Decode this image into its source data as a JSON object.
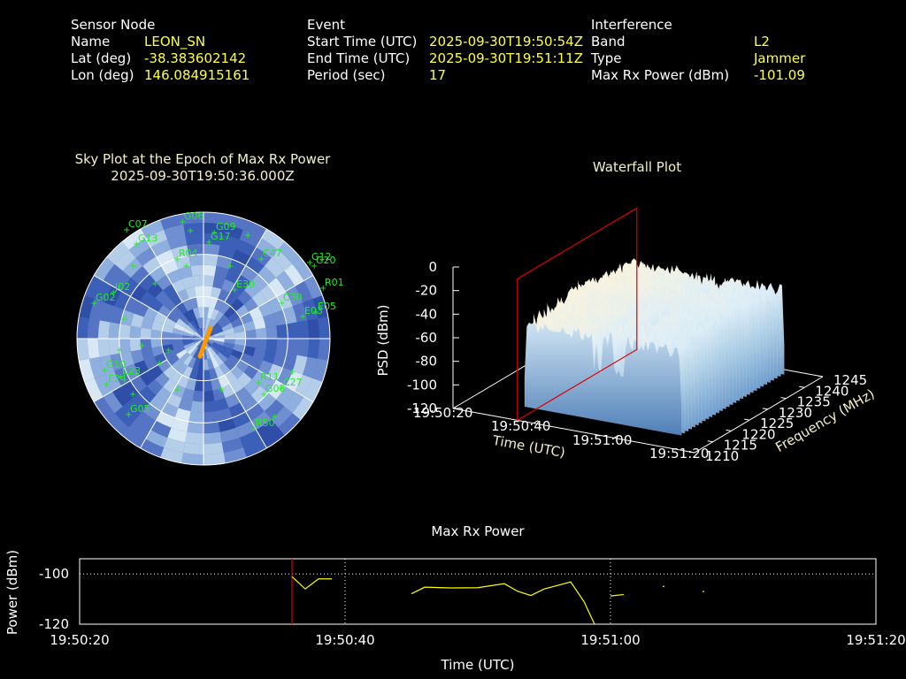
{
  "header": {
    "sensor": {
      "title": "Sensor Node",
      "name_label": "Name",
      "name": "LEON_SN",
      "lat_label": "Lat (deg)",
      "lat": "-38.383602142",
      "lon_label": "Lon (deg)",
      "lon": "146.084915161"
    },
    "event": {
      "title": "Event",
      "start_label": "Start Time (UTC)",
      "start": "2025-09-30T19:50:54Z",
      "end_label": "End Time (UTC)",
      "end": "2025-09-30T19:51:11Z",
      "period_label": "Period (sec)",
      "period": "17"
    },
    "interference": {
      "title": "Interference",
      "band_label": "Band",
      "band": "L2",
      "type_label": "Type",
      "type": "Jammer",
      "power_label": "Max Rx Power (dBm)",
      "power": "-101.09"
    }
  },
  "colors": {
    "background": "#000000",
    "label": "#ffffff",
    "value": "#ffff40",
    "satellite": "#22ee22",
    "track": "#ff9900",
    "marker": "#dd0000",
    "power_line": "#ffff00"
  },
  "chart_data": [
    {
      "type": "polar-sky",
      "title": "Sky Plot at the Epoch of Max Rx Power",
      "subtitle": "2025-09-30T19:50:36.000Z",
      "satellites": [
        {
          "id": "E05"
        },
        {
          "id": "G09"
        },
        {
          "id": "G10"
        },
        {
          "id": "G12"
        },
        {
          "id": "G17"
        },
        {
          "id": "G20"
        },
        {
          "id": "R01"
        },
        {
          "id": "R04"
        },
        {
          "id": "R11"
        },
        {
          "id": "R50"
        },
        {
          "id": "C27"
        },
        {
          "id": "C30"
        },
        {
          "id": "E30"
        },
        {
          "id": "E03"
        },
        {
          "id": "J02"
        },
        {
          "id": "G02"
        },
        {
          "id": "E23"
        },
        {
          "id": "C47"
        },
        {
          "id": "G08"
        },
        {
          "id": "E24"
        },
        {
          "id": "G05"
        },
        {
          "id": "C07"
        },
        {
          "id": "G06"
        },
        {
          "id": "G13"
        }
      ]
    },
    {
      "type": "waterfall-3d",
      "title": "Waterfall Plot",
      "xlabel": "Time (UTC)",
      "ylabel": "Frequency (MHz)",
      "zlabel": "PSD (dBm)",
      "time_ticks": [
        "19:50:20",
        "19:50:40",
        "19:51:00",
        "19:51:20"
      ],
      "freq_ticks": [
        "1210",
        "1215",
        "1220",
        "1225",
        "1230",
        "1235",
        "1240",
        "1245"
      ],
      "psd_ticks": [
        "0",
        "-20",
        "-40",
        "-60",
        "-80",
        "-100",
        "-120"
      ],
      "zlim": [
        -120,
        0
      ],
      "ylim": [
        1210,
        1245
      ],
      "marker_time": "19:50:36"
    },
    {
      "type": "line",
      "title": "Max Rx Power",
      "xlabel": "Time (UTC)",
      "ylabel": "Power (dBm)",
      "x_ticks": [
        "19:50:20",
        "19:50:40",
        "19:51:00",
        "19:51:20"
      ],
      "y_ticks": [
        "-100",
        "-120"
      ],
      "ylim": [
        -120,
        -94
      ],
      "marker_time": "19:50:36",
      "segments": [
        [
          [
            "19:50:36",
            -101.1
          ],
          [
            "19:50:37",
            -106
          ],
          [
            "19:50:38",
            -102
          ],
          [
            "19:50:39",
            -102
          ]
        ],
        [
          [
            "19:50:45",
            -107.9
          ],
          [
            "19:50:46",
            -105.3
          ],
          [
            "19:50:48",
            -105.6
          ],
          [
            "19:50:50",
            -105.5
          ],
          [
            "19:50:52",
            -103.9
          ],
          [
            "19:50:53",
            -106.9
          ],
          [
            "19:50:54",
            -108.6
          ],
          [
            "19:50:55",
            -106
          ],
          [
            "19:50:57",
            -103.2
          ],
          [
            "19:50:58",
            -111
          ],
          [
            "19:50:58.8",
            -120
          ]
        ],
        [
          [
            "19:51:00",
            -108.8
          ],
          [
            "19:51:01",
            -108.2
          ]
        ],
        [
          [
            "19:51:04",
            -105
          ]
        ],
        [
          [
            "19:51:07",
            -107
          ]
        ]
      ]
    }
  ]
}
